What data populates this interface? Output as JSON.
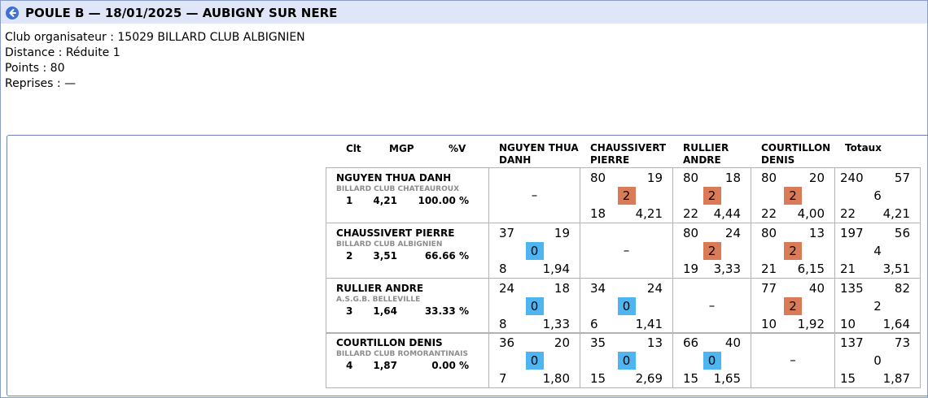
{
  "header": {
    "title": "POULE B — 18/01/2025 — AUBIGNY SUR NERE"
  },
  "info": {
    "organizer": "Club organisateur : 15029 BILLARD CLUB ALBIGNIEN",
    "distance": "Distance : Réduite 1",
    "points": "Points : 80",
    "reprises": "Reprises : —"
  },
  "columns": {
    "clt": "Clt",
    "mgp": "MGP",
    "pct": "%V",
    "players": [
      [
        "NGUYEN THUA",
        "DANH"
      ],
      [
        "CHAUSSIVERT",
        "PIERRE"
      ],
      [
        "RULLIER",
        "ANDRE"
      ],
      [
        "COURTILLON",
        "DENIS"
      ]
    ],
    "totals": "Totaux"
  },
  "colors": {
    "win_badge": "#db7a57",
    "loss_badge": "#4eb5f0",
    "title_bar": "#dfe6f7"
  },
  "rows": [
    {
      "name": "NGUYEN THUA DANH",
      "club": "BILLARD CLUB CHATEAUROUX",
      "rank": "1",
      "mgp": "4,21",
      "pct": "100.00 %",
      "matches": [
        null,
        {
          "points": "80",
          "opp_points": "19",
          "result": "2",
          "reprises": "18",
          "average": "4,21"
        },
        {
          "points": "80",
          "opp_points": "18",
          "result": "2",
          "reprises": "22",
          "average": "4,44"
        },
        {
          "points": "80",
          "opp_points": "20",
          "result": "2",
          "reprises": "22",
          "average": "4,00"
        }
      ],
      "dash": "–",
      "totals": {
        "points": "240",
        "opp_points": "57",
        "match_points": "6",
        "reprises": "22",
        "average": "4,21"
      }
    },
    {
      "name": "CHAUSSIVERT PIERRE",
      "club": "BILLARD CLUB ALBIGNIEN",
      "rank": "2",
      "mgp": "3,51",
      "pct": "66.66 %",
      "matches": [
        {
          "points": "37",
          "opp_points": "19",
          "result": "0",
          "reprises": "8",
          "average": "1,94"
        },
        null,
        {
          "points": "80",
          "opp_points": "24",
          "result": "2",
          "reprises": "19",
          "average": "3,33"
        },
        {
          "points": "80",
          "opp_points": "13",
          "result": "2",
          "reprises": "21",
          "average": "6,15"
        }
      ],
      "dash": "–",
      "totals": {
        "points": "197",
        "opp_points": "56",
        "match_points": "4",
        "reprises": "21",
        "average": "3,51"
      }
    },
    {
      "name": "RULLIER ANDRE",
      "club": "A.S.G.B. BELLEVILLE",
      "rank": "3",
      "mgp": "1,64",
      "pct": "33.33 %",
      "matches": [
        {
          "points": "24",
          "opp_points": "18",
          "result": "0",
          "reprises": "8",
          "average": "1,33"
        },
        {
          "points": "34",
          "opp_points": "24",
          "result": "0",
          "reprises": "6",
          "average": "1,41"
        },
        null,
        {
          "points": "77",
          "opp_points": "40",
          "result": "2",
          "reprises": "10",
          "average": "1,92"
        }
      ],
      "dash": "–",
      "totals": {
        "points": "135",
        "opp_points": "82",
        "match_points": "2",
        "reprises": "10",
        "average": "1,64"
      }
    },
    {
      "name": "COURTILLON DENIS",
      "club": "BILLARD CLUB ROMORANTINAIS",
      "rank": "4",
      "mgp": "1,87",
      "pct": "0.00 %",
      "matches": [
        {
          "points": "36",
          "opp_points": "20",
          "result": "0",
          "reprises": "7",
          "average": "1,80"
        },
        {
          "points": "35",
          "opp_points": "13",
          "result": "0",
          "reprises": "15",
          "average": "2,69"
        },
        {
          "points": "66",
          "opp_points": "40",
          "result": "0",
          "reprises": "15",
          "average": "1,65"
        },
        null
      ],
      "dash": "–",
      "totals": {
        "points": "137",
        "opp_points": "73",
        "match_points": "0",
        "reprises": "15",
        "average": "1,87"
      }
    }
  ]
}
